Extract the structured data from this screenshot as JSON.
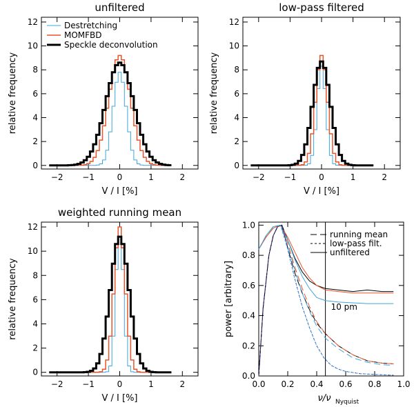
{
  "colors": {
    "destretching": "#3ea5dc",
    "momfbd": "#e8542a",
    "speckle": "#000000"
  },
  "chart_data": [
    {
      "type": "line",
      "title": "unfiltered",
      "xlabel": "V / I [%]",
      "ylabel": "relative frequency",
      "xlim": [
        -2.5,
        2.5
      ],
      "ylim": [
        -0.3,
        12.4
      ],
      "xticks": [
        -2,
        -1,
        0,
        1,
        2
      ],
      "yticks": [
        0,
        2,
        4,
        6,
        8,
        10,
        12
      ],
      "legend": {
        "placement": "top-left",
        "labels": [
          "Destretching",
          "MOMFBD",
          "Speckle deconvolution"
        ]
      },
      "bins": {
        "step": 0.1,
        "start": -2.2,
        "end": 1.6
      },
      "series": [
        {
          "name": "Destretching",
          "sigma": 0.21,
          "peak": 7.8,
          "width": 1
        },
        {
          "name": "MOMFBD",
          "sigma": 0.35,
          "peak": 9.2,
          "width": 1.5
        },
        {
          "name": "Speckle deconvolution",
          "sigma": 0.45,
          "peak": 8.6,
          "width": 3
        }
      ]
    },
    {
      "type": "line",
      "title": "low-pass filtered",
      "xlabel": "V / I [%]",
      "ylabel": "relative frequency",
      "xlim": [
        -2.5,
        2.5
      ],
      "ylim": [
        -0.3,
        12.4
      ],
      "xticks": [
        -2,
        -1,
        0,
        1,
        2
      ],
      "yticks": [
        0,
        2,
        4,
        6,
        8,
        10,
        12
      ],
      "bins": {
        "step": 0.1,
        "start": -2.2,
        "end": 1.6
      },
      "series": [
        {
          "name": "Destretching",
          "sigma": 0.14,
          "peak": 8.3,
          "width": 1
        },
        {
          "name": "MOMFBD",
          "sigma": 0.19,
          "peak": 9.2,
          "width": 1.5
        },
        {
          "name": "Speckle deconvolution",
          "sigma": 0.28,
          "peak": 8.7,
          "width": 3
        }
      ]
    },
    {
      "type": "line",
      "title": "weighted running mean",
      "xlabel": "V / I [%]",
      "ylabel": "relative frequency",
      "xlim": [
        -2.5,
        2.5
      ],
      "ylim": [
        -0.3,
        12.4
      ],
      "xticks": [
        -2,
        -1,
        0,
        1,
        2
      ],
      "yticks": [
        0,
        2,
        4,
        6,
        8,
        10,
        12
      ],
      "bins": {
        "step": 0.1,
        "start": -2.2,
        "end": 1.6
      },
      "series": [
        {
          "name": "Destretching",
          "sigma": 0.12,
          "peak": 12.0,
          "width": 1
        },
        {
          "name": "MOMFBD",
          "sigma": 0.18,
          "peak": 12.0,
          "width": 1.5
        },
        {
          "name": "Speckle deconvolution",
          "sigma": 0.3,
          "peak": 11.2,
          "width": 3
        }
      ]
    },
    {
      "type": "line",
      "title": "",
      "xlabel": "ν/ν",
      "xlabel_sub": "Nyquist",
      "ylabel": "power [arbitrary]",
      "xlim": [
        0.0,
        1.0
      ],
      "ylim": [
        0.0,
        1.02
      ],
      "xticks": [
        0.0,
        0.2,
        0.4,
        0.6,
        0.8,
        1.0
      ],
      "yticks": [
        0.0,
        0.2,
        0.4,
        0.6,
        0.8,
        1.0
      ],
      "vline_x": 0.46,
      "annotation": "10 pm",
      "legend": {
        "placement": "top-right",
        "labels": [
          "running mean",
          "low-pass filt.",
          "unfiltered"
        ]
      },
      "series": [
        {
          "name": "unfiltered",
          "style": "solid",
          "color": "#000000",
          "x": [
            0.0,
            0.03,
            0.07,
            0.1,
            0.13,
            0.16,
            0.2,
            0.25,
            0.3,
            0.35,
            0.4,
            0.46,
            0.55,
            0.65,
            0.75,
            0.85,
            0.93
          ],
          "y": [
            0.0,
            0.45,
            0.8,
            0.93,
            0.99,
            1.0,
            0.9,
            0.78,
            0.69,
            0.63,
            0.6,
            0.58,
            0.57,
            0.56,
            0.57,
            0.56,
            0.56
          ]
        },
        {
          "name": "unfiltered",
          "style": "solid",
          "color": "#e8542a",
          "x": [
            0.0,
            0.05,
            0.1,
            0.15,
            0.2,
            0.25,
            0.3,
            0.35,
            0.4,
            0.46,
            0.55,
            0.65,
            0.75,
            0.85,
            0.93
          ],
          "y": [
            0.84,
            0.92,
            0.98,
            1.0,
            0.92,
            0.82,
            0.72,
            0.65,
            0.6,
            0.57,
            0.56,
            0.55,
            0.55,
            0.55,
            0.55
          ]
        },
        {
          "name": "unfiltered",
          "style": "solid",
          "color": "#3ea5dc",
          "x": [
            0.0,
            0.05,
            0.1,
            0.15,
            0.2,
            0.25,
            0.3,
            0.35,
            0.4,
            0.46,
            0.55,
            0.65,
            0.75,
            0.85,
            0.93
          ],
          "y": [
            0.84,
            0.93,
            0.99,
            1.0,
            0.9,
            0.77,
            0.66,
            0.58,
            0.52,
            0.5,
            0.49,
            0.485,
            0.48,
            0.48,
            0.48
          ]
        },
        {
          "name": "running mean",
          "style": "longdash",
          "color": "#000000",
          "x": [
            0.0,
            0.03,
            0.07,
            0.1,
            0.13,
            0.16,
            0.2,
            0.25,
            0.3,
            0.35,
            0.4,
            0.46,
            0.55,
            0.65,
            0.75,
            0.85,
            0.93
          ],
          "y": [
            0.0,
            0.45,
            0.8,
            0.93,
            0.99,
            1.0,
            0.85,
            0.68,
            0.55,
            0.44,
            0.35,
            0.28,
            0.2,
            0.14,
            0.1,
            0.085,
            0.08
          ]
        },
        {
          "name": "running mean",
          "style": "longdash",
          "color": "#e8542a",
          "x": [
            0.0,
            0.05,
            0.1,
            0.15,
            0.2,
            0.25,
            0.3,
            0.35,
            0.4,
            0.46,
            0.55,
            0.65,
            0.75,
            0.85,
            0.93
          ],
          "y": [
            0.84,
            0.92,
            0.98,
            1.0,
            0.88,
            0.72,
            0.58,
            0.46,
            0.36,
            0.28,
            0.2,
            0.14,
            0.1,
            0.085,
            0.08
          ]
        },
        {
          "name": "running mean",
          "style": "longdash",
          "color": "#3ea5dc",
          "x": [
            0.0,
            0.05,
            0.1,
            0.15,
            0.2,
            0.25,
            0.3,
            0.35,
            0.4,
            0.46,
            0.55,
            0.65,
            0.75,
            0.85,
            0.93
          ],
          "y": [
            0.84,
            0.93,
            0.99,
            1.0,
            0.86,
            0.7,
            0.55,
            0.43,
            0.33,
            0.25,
            0.18,
            0.12,
            0.09,
            0.075,
            0.07
          ]
        },
        {
          "name": "low-pass filt.",
          "style": "shortdash",
          "color": "#3a2fb0",
          "x": [
            0.0,
            0.03,
            0.07,
            0.1,
            0.13,
            0.16,
            0.2,
            0.25,
            0.3,
            0.35,
            0.4,
            0.45,
            0.5,
            0.55,
            0.6,
            0.7,
            0.8,
            0.93
          ],
          "y": [
            0.0,
            0.45,
            0.8,
            0.93,
            0.99,
            1.0,
            0.84,
            0.64,
            0.46,
            0.32,
            0.2,
            0.12,
            0.07,
            0.045,
            0.03,
            0.015,
            0.01,
            0.005
          ]
        },
        {
          "name": "low-pass filt.",
          "style": "shortdash",
          "color": "#3ea5dc",
          "x": [
            0.0,
            0.05,
            0.1,
            0.15,
            0.2,
            0.25,
            0.3,
            0.35,
            0.4,
            0.45,
            0.5,
            0.55,
            0.6,
            0.7,
            0.8,
            0.93
          ],
          "y": [
            0.84,
            0.93,
            0.99,
            1.0,
            0.84,
            0.64,
            0.46,
            0.32,
            0.2,
            0.12,
            0.07,
            0.045,
            0.03,
            0.015,
            0.01,
            0.005
          ]
        }
      ]
    }
  ]
}
